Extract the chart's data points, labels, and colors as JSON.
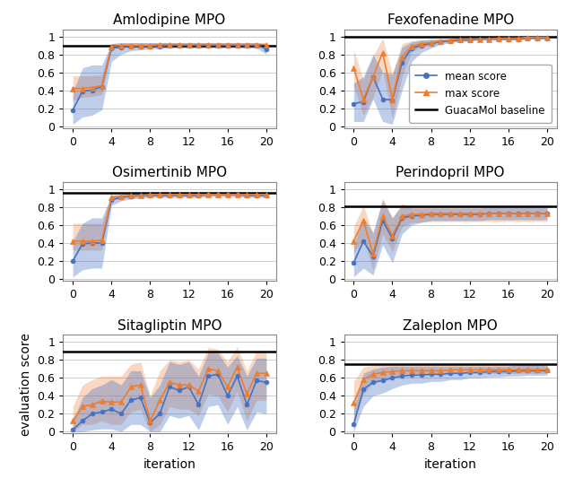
{
  "titles": [
    "Amlodipine MPO",
    "Fexofenadine MPO",
    "Osimertinib MPO",
    "Perindopril MPO",
    "Sitagliptin MPO",
    "Zaleplon MPO"
  ],
  "baselines": [
    0.894,
    1.0,
    0.956,
    0.811,
    0.894,
    0.75
  ],
  "mean_color": "#4472C4",
  "max_color": "#ED7D31",
  "baseline_color": "black",
  "iterations": [
    0,
    1,
    2,
    3,
    4,
    5,
    6,
    7,
    8,
    9,
    10,
    11,
    12,
    13,
    14,
    15,
    16,
    17,
    18,
    19,
    20
  ],
  "data": {
    "Amlodipine MPO": {
      "mean": [
        0.18,
        0.39,
        0.4,
        0.44,
        0.87,
        0.88,
        0.89,
        0.89,
        0.89,
        0.89,
        0.9,
        0.9,
        0.9,
        0.9,
        0.9,
        0.9,
        0.9,
        0.9,
        0.9,
        0.9,
        0.86
      ],
      "mean_lo": [
        0.02,
        0.1,
        0.12,
        0.18,
        0.72,
        0.8,
        0.84,
        0.85,
        0.86,
        0.86,
        0.87,
        0.87,
        0.87,
        0.87,
        0.87,
        0.87,
        0.87,
        0.87,
        0.87,
        0.87,
        0.8
      ],
      "mean_hi": [
        0.38,
        0.65,
        0.68,
        0.68,
        0.92,
        0.93,
        0.93,
        0.93,
        0.93,
        0.93,
        0.93,
        0.93,
        0.93,
        0.93,
        0.93,
        0.93,
        0.93,
        0.93,
        0.93,
        0.93,
        0.91
      ],
      "max": [
        0.42,
        0.42,
        0.43,
        0.45,
        0.89,
        0.9,
        0.9,
        0.9,
        0.9,
        0.91,
        0.91,
        0.91,
        0.91,
        0.91,
        0.91,
        0.91,
        0.91,
        0.91,
        0.91,
        0.91,
        0.91
      ],
      "max_lo": [
        0.28,
        0.32,
        0.33,
        0.35,
        0.86,
        0.87,
        0.88,
        0.88,
        0.88,
        0.89,
        0.89,
        0.89,
        0.89,
        0.89,
        0.89,
        0.89,
        0.89,
        0.89,
        0.89,
        0.89,
        0.89
      ],
      "max_hi": [
        0.56,
        0.56,
        0.56,
        0.57,
        0.92,
        0.93,
        0.93,
        0.93,
        0.93,
        0.93,
        0.93,
        0.93,
        0.93,
        0.93,
        0.93,
        0.93,
        0.93,
        0.93,
        0.93,
        0.93,
        0.93
      ]
    },
    "Fexofenadine MPO": {
      "mean": [
        0.25,
        0.27,
        0.55,
        0.3,
        0.29,
        0.71,
        0.87,
        0.9,
        0.92,
        0.94,
        0.95,
        0.96,
        0.96,
        0.97,
        0.97,
        0.97,
        0.97,
        0.97,
        0.98,
        0.98,
        0.98
      ],
      "mean_lo": [
        0.05,
        0.05,
        0.3,
        0.05,
        0.02,
        0.4,
        0.72,
        0.82,
        0.87,
        0.91,
        0.93,
        0.94,
        0.95,
        0.96,
        0.96,
        0.96,
        0.96,
        0.96,
        0.97,
        0.97,
        0.97
      ],
      "mean_hi": [
        0.48,
        0.55,
        0.8,
        0.6,
        0.58,
        0.88,
        0.94,
        0.96,
        0.97,
        0.97,
        0.97,
        0.98,
        0.98,
        0.98,
        0.98,
        0.98,
        0.98,
        0.98,
        0.99,
        0.99,
        0.99
      ],
      "max": [
        0.65,
        0.3,
        0.55,
        0.82,
        0.3,
        0.77,
        0.89,
        0.92,
        0.93,
        0.95,
        0.96,
        0.97,
        0.97,
        0.97,
        0.97,
        0.98,
        0.98,
        0.98,
        0.99,
        0.99,
        0.99
      ],
      "max_lo": [
        0.45,
        0.12,
        0.32,
        0.62,
        0.08,
        0.55,
        0.83,
        0.88,
        0.9,
        0.93,
        0.94,
        0.95,
        0.95,
        0.96,
        0.96,
        0.97,
        0.97,
        0.97,
        0.98,
        0.98,
        0.98
      ],
      "max_hi": [
        0.85,
        0.52,
        0.78,
        0.98,
        0.58,
        0.92,
        0.95,
        0.96,
        0.96,
        0.97,
        0.98,
        0.99,
        0.99,
        0.98,
        0.98,
        0.99,
        0.99,
        0.99,
        0.99,
        0.99,
        0.99
      ]
    },
    "Osimertinib MPO": {
      "mean": [
        0.2,
        0.39,
        0.4,
        0.4,
        0.88,
        0.91,
        0.92,
        0.93,
        0.93,
        0.93,
        0.93,
        0.93,
        0.93,
        0.93,
        0.94,
        0.94,
        0.94,
        0.94,
        0.93,
        0.93,
        0.93
      ],
      "mean_lo": [
        0.02,
        0.1,
        0.12,
        0.12,
        0.82,
        0.87,
        0.89,
        0.9,
        0.91,
        0.91,
        0.91,
        0.91,
        0.91,
        0.91,
        0.92,
        0.92,
        0.92,
        0.92,
        0.91,
        0.91,
        0.91
      ],
      "mean_hi": [
        0.42,
        0.62,
        0.68,
        0.68,
        0.93,
        0.94,
        0.95,
        0.95,
        0.95,
        0.95,
        0.95,
        0.95,
        0.95,
        0.95,
        0.96,
        0.96,
        0.96,
        0.96,
        0.95,
        0.95,
        0.96
      ],
      "max": [
        0.42,
        0.42,
        0.42,
        0.43,
        0.91,
        0.92,
        0.93,
        0.93,
        0.94,
        0.94,
        0.94,
        0.94,
        0.94,
        0.94,
        0.94,
        0.94,
        0.94,
        0.94,
        0.94,
        0.94,
        0.94
      ],
      "max_lo": [
        0.32,
        0.32,
        0.32,
        0.32,
        0.88,
        0.9,
        0.91,
        0.91,
        0.92,
        0.92,
        0.92,
        0.92,
        0.92,
        0.92,
        0.92,
        0.92,
        0.92,
        0.92,
        0.92,
        0.92,
        0.92
      ],
      "max_hi": [
        0.62,
        0.62,
        0.62,
        0.62,
        0.94,
        0.94,
        0.95,
        0.95,
        0.96,
        0.96,
        0.96,
        0.96,
        0.96,
        0.96,
        0.96,
        0.96,
        0.96,
        0.96,
        0.96,
        0.96,
        0.96
      ]
    },
    "Perindopril MPO": {
      "mean": [
        0.18,
        0.42,
        0.25,
        0.65,
        0.45,
        0.68,
        0.7,
        0.71,
        0.72,
        0.72,
        0.72,
        0.72,
        0.72,
        0.72,
        0.73,
        0.73,
        0.73,
        0.73,
        0.73,
        0.73,
        0.73
      ],
      "mean_lo": [
        0.02,
        0.12,
        0.04,
        0.38,
        0.18,
        0.5,
        0.6,
        0.63,
        0.65,
        0.65,
        0.65,
        0.65,
        0.65,
        0.65,
        0.66,
        0.66,
        0.66,
        0.66,
        0.66,
        0.66,
        0.66
      ],
      "mean_hi": [
        0.38,
        0.68,
        0.52,
        0.88,
        0.68,
        0.82,
        0.79,
        0.79,
        0.79,
        0.79,
        0.79,
        0.79,
        0.79,
        0.79,
        0.8,
        0.8,
        0.8,
        0.8,
        0.8,
        0.8,
        0.8
      ],
      "max": [
        0.42,
        0.65,
        0.28,
        0.7,
        0.48,
        0.7,
        0.72,
        0.72,
        0.73,
        0.73,
        0.73,
        0.73,
        0.73,
        0.73,
        0.73,
        0.73,
        0.73,
        0.73,
        0.73,
        0.73,
        0.73
      ],
      "max_lo": [
        0.28,
        0.45,
        0.1,
        0.5,
        0.3,
        0.58,
        0.63,
        0.63,
        0.64,
        0.64,
        0.64,
        0.64,
        0.64,
        0.64,
        0.64,
        0.64,
        0.64,
        0.64,
        0.64,
        0.64,
        0.64
      ],
      "max_hi": [
        0.58,
        0.82,
        0.5,
        0.9,
        0.68,
        0.84,
        0.81,
        0.81,
        0.82,
        0.82,
        0.82,
        0.82,
        0.82,
        0.82,
        0.82,
        0.82,
        0.82,
        0.82,
        0.82,
        0.82,
        0.82
      ]
    },
    "Sitagliptin MPO": {
      "mean": [
        0.02,
        0.12,
        0.2,
        0.22,
        0.25,
        0.2,
        0.35,
        0.38,
        0.1,
        0.2,
        0.5,
        0.46,
        0.5,
        0.3,
        0.62,
        0.64,
        0.4,
        0.62,
        0.3,
        0.57,
        0.55
      ],
      "mean_lo": [
        0.0,
        0.0,
        0.02,
        0.03,
        0.03,
        0.0,
        0.08,
        0.08,
        0.0,
        0.0,
        0.18,
        0.15,
        0.18,
        0.02,
        0.28,
        0.3,
        0.08,
        0.28,
        0.02,
        0.22,
        0.2
      ],
      "mean_hi": [
        0.12,
        0.38,
        0.48,
        0.52,
        0.58,
        0.52,
        0.68,
        0.68,
        0.38,
        0.52,
        0.78,
        0.75,
        0.78,
        0.62,
        0.88,
        0.88,
        0.72,
        0.85,
        0.62,
        0.82,
        0.82
      ],
      "max": [
        0.12,
        0.28,
        0.3,
        0.34,
        0.33,
        0.33,
        0.5,
        0.52,
        0.12,
        0.35,
        0.55,
        0.52,
        0.52,
        0.45,
        0.7,
        0.68,
        0.5,
        0.72,
        0.42,
        0.65,
        0.65
      ],
      "max_lo": [
        0.0,
        0.08,
        0.08,
        0.12,
        0.08,
        0.08,
        0.22,
        0.25,
        0.0,
        0.08,
        0.28,
        0.25,
        0.25,
        0.18,
        0.42,
        0.4,
        0.22,
        0.45,
        0.12,
        0.35,
        0.35
      ],
      "max_hi": [
        0.28,
        0.52,
        0.58,
        0.62,
        0.62,
        0.62,
        0.75,
        0.78,
        0.4,
        0.68,
        0.8,
        0.78,
        0.8,
        0.7,
        0.94,
        0.92,
        0.78,
        0.95,
        0.68,
        0.9,
        0.9
      ]
    },
    "Zaleplon MPO": {
      "mean": [
        0.08,
        0.47,
        0.55,
        0.57,
        0.6,
        0.62,
        0.63,
        0.63,
        0.64,
        0.64,
        0.65,
        0.65,
        0.66,
        0.66,
        0.67,
        0.67,
        0.67,
        0.68,
        0.68,
        0.68,
        0.68
      ],
      "mean_lo": [
        0.0,
        0.28,
        0.4,
        0.43,
        0.48,
        0.52,
        0.54,
        0.54,
        0.56,
        0.56,
        0.58,
        0.58,
        0.6,
        0.6,
        0.61,
        0.61,
        0.62,
        0.62,
        0.63,
        0.63,
        0.63
      ],
      "mean_hi": [
        0.28,
        0.65,
        0.7,
        0.72,
        0.73,
        0.73,
        0.73,
        0.73,
        0.73,
        0.73,
        0.73,
        0.73,
        0.73,
        0.73,
        0.73,
        0.73,
        0.73,
        0.75,
        0.75,
        0.75,
        0.75
      ],
      "max": [
        0.32,
        0.58,
        0.64,
        0.66,
        0.67,
        0.68,
        0.68,
        0.68,
        0.68,
        0.68,
        0.69,
        0.69,
        0.69,
        0.69,
        0.69,
        0.69,
        0.69,
        0.69,
        0.69,
        0.69,
        0.69
      ],
      "max_lo": [
        0.12,
        0.42,
        0.54,
        0.58,
        0.62,
        0.64,
        0.64,
        0.64,
        0.65,
        0.65,
        0.65,
        0.65,
        0.65,
        0.65,
        0.65,
        0.65,
        0.65,
        0.65,
        0.65,
        0.65,
        0.65
      ],
      "max_hi": [
        0.56,
        0.72,
        0.74,
        0.74,
        0.74,
        0.74,
        0.74,
        0.74,
        0.74,
        0.74,
        0.74,
        0.74,
        0.74,
        0.74,
        0.74,
        0.74,
        0.74,
        0.74,
        0.74,
        0.74,
        0.74
      ]
    }
  },
  "xlabel": "iteration",
  "ylabel": "evaluation score",
  "xticks": [
    0,
    4,
    8,
    12,
    16,
    20
  ],
  "yticks": [
    0,
    0.2,
    0.4,
    0.6,
    0.8,
    1
  ],
  "ytick_labels": [
    "0",
    "0.2",
    "0.4",
    "0.6",
    "0.8",
    "1"
  ],
  "figsize": [
    6.4,
    5.43
  ],
  "dpi": 100,
  "title_fontsize": 11,
  "tick_fontsize": 9,
  "label_fontsize": 10,
  "legend_fontsize": 8.5
}
